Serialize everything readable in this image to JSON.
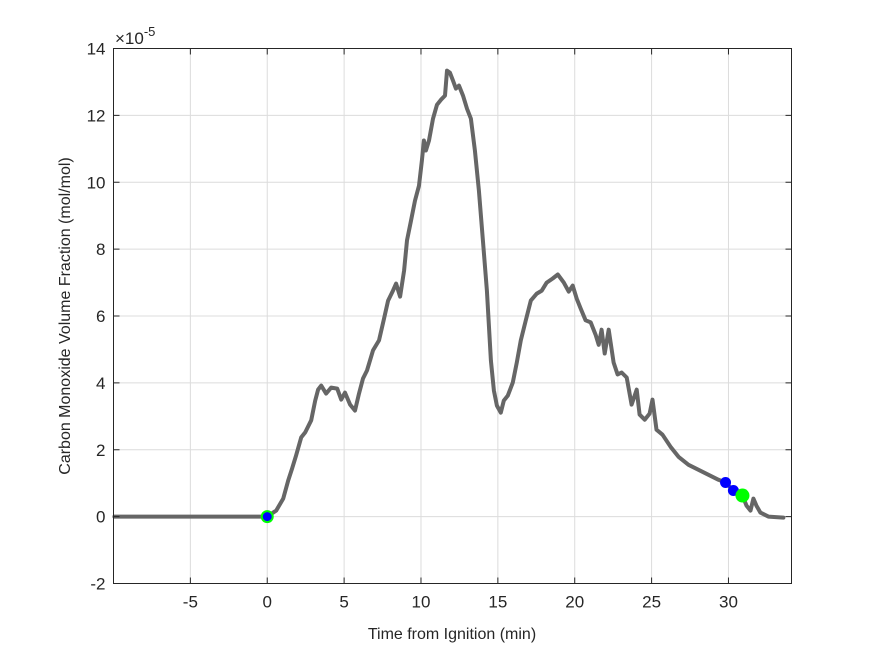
{
  "chart_data": {
    "type": "line",
    "title": "",
    "xlabel": "Time from Ignition (min)",
    "ylabel": "Carbon Monoxide Volume Fraction (mol/mol)",
    "y_exponent_label": "×10",
    "y_exponent_power": "-5",
    "xlim": [
      -10,
      34.1
    ],
    "ylim": [
      -2,
      14
    ],
    "grid": true,
    "legend": "none",
    "x_ticks": [
      -5,
      0,
      5,
      10,
      15,
      20,
      25,
      30
    ],
    "x_tick_labels": [
      "-5",
      "0",
      "5",
      "10",
      "15",
      "20",
      "25",
      "30"
    ],
    "y_ticks": [
      -2,
      0,
      2,
      4,
      6,
      8,
      10,
      12,
      14
    ],
    "y_tick_labels": [
      "-2",
      "0",
      "2",
      "4",
      "6",
      "8",
      "10",
      "12",
      "14"
    ],
    "series": [
      {
        "name": "CO volume fraction",
        "color": "#666666",
        "x": [
          -9.94,
          -4.29,
          -0.39,
          0,
          0.58,
          1.04,
          1.36,
          1.62,
          1.88,
          2.21,
          2.47,
          2.86,
          3.12,
          3.31,
          3.51,
          3.83,
          4.16,
          4.55,
          4.81,
          5.06,
          5.39,
          5.71,
          5.97,
          6.23,
          6.49,
          6.88,
          7.27,
          7.6,
          7.86,
          8.18,
          8.38,
          8.64,
          8.9,
          9.09,
          9.35,
          9.61,
          9.87,
          10.06,
          10.19,
          10.32,
          10.52,
          10.78,
          11.04,
          11.3,
          11.56,
          11.69,
          11.88,
          12.08,
          12.27,
          12.47,
          12.73,
          12.99,
          13.25,
          13.51,
          13.77,
          14.03,
          14.29,
          14.55,
          14.74,
          14.94,
          15.19,
          15.39,
          15.65,
          15.97,
          16.23,
          16.49,
          16.82,
          17.14,
          17.53,
          17.86,
          18.18,
          18.57,
          18.9,
          19.29,
          19.61,
          19.87,
          20.13,
          20.39,
          20.71,
          21.04,
          21.36,
          21.56,
          21.75,
          21.95,
          22.21,
          22.53,
          22.79,
          23.05,
          23.38,
          23.7,
          24.03,
          24.22,
          24.55,
          24.87,
          25.06,
          25.32,
          25.71,
          26.23,
          26.75,
          27.4,
          28.05,
          28.7,
          29.35,
          29.81,
          30.32,
          30.91,
          31.17,
          31.43,
          31.62,
          31.82,
          32.08,
          32.6,
          33.57
        ],
        "y": [
          0,
          0,
          0,
          0,
          0.18,
          0.54,
          1.08,
          1.44,
          1.83,
          2.37,
          2.52,
          2.88,
          3.47,
          3.8,
          3.92,
          3.68,
          3.86,
          3.83,
          3.5,
          3.71,
          3.35,
          3.17,
          3.68,
          4.13,
          4.37,
          4.97,
          5.27,
          5.93,
          6.46,
          6.76,
          6.97,
          6.58,
          7.36,
          8.26,
          8.85,
          9.45,
          9.9,
          10.65,
          11.25,
          10.95,
          11.25,
          11.9,
          12.32,
          12.47,
          12.59,
          13.34,
          13.28,
          13.04,
          12.8,
          12.89,
          12.59,
          12.2,
          11.9,
          10.95,
          9.75,
          8.26,
          6.76,
          4.67,
          3.77,
          3.32,
          3.11,
          3.47,
          3.62,
          4.01,
          4.61,
          5.27,
          5.87,
          6.46,
          6.67,
          6.76,
          7.0,
          7.12,
          7.24,
          7.0,
          6.73,
          6.91,
          6.52,
          6.22,
          5.87,
          5.81,
          5.44,
          5.14,
          5.59,
          4.88,
          5.59,
          4.61,
          4.25,
          4.31,
          4.16,
          3.35,
          3.8,
          3.05,
          2.9,
          3.08,
          3.5,
          2.6,
          2.45,
          2.09,
          1.79,
          1.55,
          1.4,
          1.25,
          1.1,
          1.02,
          0.78,
          0.63,
          0.33,
          0.18,
          0.54,
          0.33,
          0.12,
          0,
          -0.03
        ]
      }
    ],
    "markers": [
      {
        "name": "ignition-marker",
        "x": 0,
        "y": 0,
        "fill": "#0000ff",
        "edge": "#00ff00"
      },
      {
        "name": "blue-marker-1",
        "x": 29.81,
        "y": 1.02,
        "fill": "#0000ff"
      },
      {
        "name": "blue-marker-2",
        "x": 30.32,
        "y": 0.78,
        "fill": "#0000ff"
      },
      {
        "name": "green-marker",
        "x": 30.91,
        "y": 0.63,
        "fill": "#00ff00"
      }
    ]
  }
}
